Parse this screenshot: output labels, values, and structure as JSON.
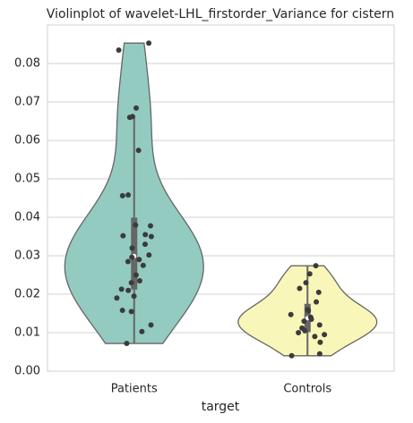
{
  "chart_data": {
    "type": "violin",
    "title": "Violinplot of wavelet-LHL_firstorder_Variance for cistern",
    "x_label": "target",
    "categories": [
      "Patients",
      "Controls"
    ],
    "colors": [
      "#93cbc1",
      "#f8f7b9"
    ],
    "values": [
      [
        0.0853,
        0.0835,
        0.0684,
        0.066,
        0.0662,
        0.0574,
        0.0456,
        0.0458,
        0.038,
        0.0378,
        0.0355,
        0.0352,
        0.035,
        0.033,
        0.032,
        0.0302,
        0.0296,
        0.029,
        0.0285,
        0.0275,
        0.025,
        0.0235,
        0.023,
        0.0213,
        0.021,
        0.0195,
        0.019,
        0.0158,
        0.0155,
        0.012,
        0.0103,
        0.0072
      ],
      [
        0.0274,
        0.0253,
        0.023,
        0.0215,
        0.0205,
        0.018,
        0.016,
        0.0158,
        0.0157,
        0.0147,
        0.014,
        0.0135,
        0.013,
        0.012,
        0.0112,
        0.0105,
        0.01,
        0.0095,
        0.009,
        0.0075,
        0.0045,
        0.004
      ]
    ],
    "ylim": [
      0,
      0.09
    ],
    "yticks": [
      {
        "value": 0,
        "label": "0.00"
      },
      0.01,
      0.02,
      0.03,
      0.04,
      0.05,
      0.06,
      0.07,
      0.08
    ],
    "grid": true
  }
}
